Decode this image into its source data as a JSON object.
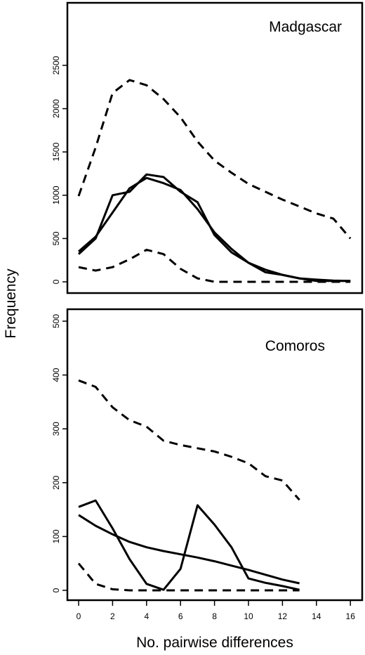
{
  "ylabel": "Frequency",
  "xlabel": "No. pairwise differences",
  "chart_data": [
    {
      "type": "line",
      "title": "Madgascar",
      "xlim": [
        0,
        16
      ],
      "ylim": [
        0,
        2500
      ],
      "yticks": [
        "0",
        "500",
        "1000",
        "1500",
        "2000",
        "2500"
      ],
      "yticks_v": [
        0,
        500,
        1000,
        1500,
        2000,
        2500
      ],
      "series": [
        {
          "style": "dashed",
          "x": [
            0,
            1,
            2,
            3,
            4,
            5,
            6,
            7,
            8,
            9,
            10,
            11,
            12,
            13,
            14,
            15,
            16
          ],
          "values": [
            990,
            1550,
            2180,
            2330,
            2270,
            2110,
            1900,
            1620,
            1400,
            1260,
            1130,
            1040,
            950,
            870,
            790,
            730,
            500
          ]
        },
        {
          "style": "dashed",
          "x": [
            0,
            1,
            2,
            3,
            4,
            5,
            6,
            7,
            8,
            9,
            10,
            11,
            12,
            13,
            14,
            15,
            16
          ],
          "values": [
            170,
            130,
            170,
            260,
            370,
            320,
            150,
            40,
            0,
            0,
            0,
            0,
            0,
            0,
            0,
            0,
            0
          ]
        },
        {
          "style": "solid",
          "x": [
            0,
            1,
            2,
            3,
            4,
            5,
            6,
            7,
            8,
            9,
            10,
            11,
            12,
            13,
            14,
            15,
            16
          ],
          "values": [
            320,
            500,
            1000,
            1040,
            1240,
            1210,
            1040,
            920,
            540,
            340,
            220,
            110,
            80,
            40,
            10,
            10,
            10
          ]
        },
        {
          "style": "solid",
          "x": [
            0,
            1,
            2,
            3,
            4,
            5,
            6,
            7,
            8,
            9,
            10,
            11,
            12,
            13,
            14,
            15,
            16
          ],
          "values": [
            350,
            520,
            800,
            1080,
            1200,
            1140,
            1060,
            840,
            570,
            380,
            220,
            140,
            80,
            40,
            25,
            15,
            10
          ]
        }
      ]
    },
    {
      "type": "line",
      "title": "Comoros",
      "xlim": [
        0,
        16
      ],
      "ylim": [
        0,
        500
      ],
      "yticks": [
        "0",
        "100",
        "200",
        "300",
        "400",
        "500"
      ],
      "yticks_v": [
        0,
        100,
        200,
        300,
        400,
        500
      ],
      "series": [
        {
          "style": "dashed",
          "x": [
            0,
            1,
            2,
            3,
            4,
            5,
            6,
            7,
            8,
            9,
            10,
            11,
            12,
            13
          ],
          "values": [
            390,
            378,
            340,
            316,
            304,
            278,
            270,
            264,
            258,
            248,
            236,
            212,
            204,
            168
          ]
        },
        {
          "style": "dashed",
          "x": [
            0,
            1,
            2,
            3,
            4,
            5,
            6,
            7,
            8,
            9,
            10,
            11,
            12,
            13
          ],
          "values": [
            50,
            12,
            2,
            0,
            0,
            0,
            0,
            0,
            0,
            0,
            0,
            0,
            0,
            0
          ]
        },
        {
          "style": "solid",
          "x": [
            0,
            1,
            2,
            3,
            4,
            5,
            6,
            7,
            8,
            9,
            10,
            11,
            12,
            13
          ],
          "values": [
            155,
            167,
            115,
            58,
            12,
            1,
            40,
            158,
            122,
            80,
            22,
            14,
            8,
            1
          ]
        },
        {
          "style": "solid",
          "x": [
            0,
            1,
            2,
            3,
            4,
            5,
            6,
            7,
            8,
            9,
            10,
            11,
            12,
            13
          ],
          "values": [
            140,
            120,
            104,
            90,
            80,
            73,
            67,
            61,
            54,
            46,
            38,
            29,
            20,
            13
          ]
        }
      ]
    }
  ],
  "xticks": [
    "0",
    "2",
    "4",
    "6",
    "8",
    "10",
    "12",
    "14",
    "16"
  ],
  "xticks_v": [
    0,
    2,
    4,
    6,
    8,
    10,
    12,
    14,
    16
  ]
}
